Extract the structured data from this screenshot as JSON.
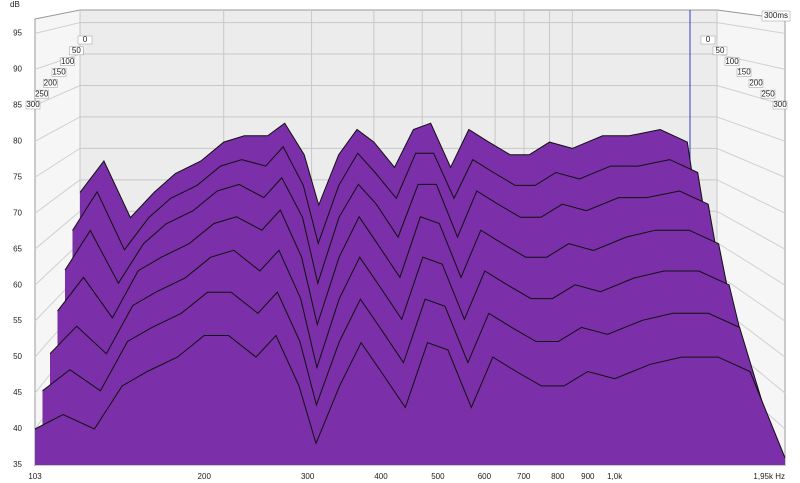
{
  "chart_data": {
    "type": "waterfall",
    "y_label": "dB",
    "time_label": "300ms",
    "x": [
      103,
      115,
      130,
      145,
      160,
      180,
      200,
      220,
      245,
      265,
      290,
      310,
      340,
      370,
      400,
      440,
      480,
      520,
      570,
      620,
      680,
      750,
      820,
      900,
      1000,
      1150,
      1300,
      1500,
      1700,
      1950
    ],
    "series": [
      {
        "name": "0",
        "color": "#7b2fa8",
        "values": [
          68,
          73,
          64,
          68,
          71,
          73,
          76,
          77,
          77,
          79,
          74,
          66,
          74,
          78,
          76,
          72,
          78,
          79,
          72,
          78,
          76,
          74,
          74,
          76,
          75,
          77,
          77,
          78,
          76,
          45
        ]
      },
      {
        "name": "50",
        "color": "#7b2fa8",
        "values": [
          63,
          69,
          60,
          65,
          68,
          70,
          73,
          74,
          73,
          76,
          70,
          61,
          70,
          75,
          72,
          68,
          75,
          75,
          68,
          74,
          72,
          70,
          70,
          72,
          71,
          73,
          73,
          74,
          72,
          43
        ]
      },
      {
        "name": "100",
        "color": "#7b2fa8",
        "values": [
          58,
          64,
          56,
          62,
          65,
          67,
          70,
          71,
          69,
          72,
          66,
          56,
          66,
          71,
          68,
          63,
          71,
          71,
          63,
          70,
          68,
          66,
          66,
          68,
          67,
          69,
          69,
          70,
          68,
          41
        ]
      },
      {
        "name": "150",
        "color": "#7b2fa8",
        "values": [
          53,
          58,
          52,
          59,
          61,
          63,
          66,
          67,
          65,
          68,
          61,
          51,
          61,
          67,
          63,
          58,
          67,
          66,
          58,
          65,
          63,
          61,
          61,
          63,
          62,
          64,
          65,
          65,
          63,
          39
        ]
      },
      {
        "name": "200",
        "color": "#7b2fa8",
        "values": [
          48,
          52,
          48,
          55,
          57,
          59,
          62,
          63,
          60,
          63,
          56,
          46,
          56,
          62,
          58,
          53,
          62,
          61,
          53,
          60,
          58,
          56,
          56,
          58,
          57,
          59,
          60,
          60,
          58,
          38
        ]
      },
      {
        "name": "250",
        "color": "#7b2fa8",
        "values": [
          44,
          47,
          44,
          51,
          53,
          55,
          58,
          58,
          55,
          58,
          51,
          42,
          51,
          57,
          53,
          48,
          57,
          56,
          48,
          55,
          53,
          51,
          51,
          53,
          52,
          54,
          55,
          55,
          53,
          37
        ]
      },
      {
        "name": "300",
        "color": "#7b2fa8",
        "values": [
          40,
          42,
          40,
          46,
          48,
          50,
          53,
          53,
          50,
          53,
          46,
          38,
          46,
          52,
          48,
          43,
          52,
          51,
          43,
          50,
          48,
          46,
          46,
          48,
          47,
          49,
          50,
          50,
          48,
          36
        ]
      }
    ],
    "xlim": [
      103,
      1950
    ],
    "xticks": [
      103,
      200,
      300,
      400,
      500,
      600,
      700,
      800,
      900,
      {
        "value": 1000,
        "label": "1,0k"
      },
      {
        "value": 1950,
        "label": "1,95k Hz"
      }
    ],
    "log_x": true,
    "ylim": [
      35,
      97
    ],
    "yticks": [
      35,
      40,
      45,
      50,
      55,
      60,
      65,
      70,
      75,
      80,
      85,
      90,
      95
    ],
    "grid": true
  }
}
